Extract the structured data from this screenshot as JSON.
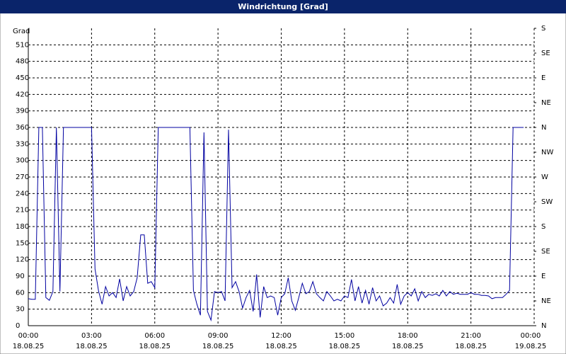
{
  "chart_data": {
    "type": "line",
    "title": "Windrichtung [Grad]",
    "ylabel": "Grad",
    "color": "#0000a0",
    "grid": true,
    "x": [
      0,
      10,
      20,
      30,
      40,
      50,
      60,
      70,
      80,
      90,
      100,
      180,
      190,
      200,
      210,
      220,
      230,
      240,
      250,
      260,
      270,
      280,
      290,
      300,
      310,
      320,
      330,
      340,
      350,
      360,
      370,
      460,
      470,
      480,
      490,
      500,
      510,
      520,
      530,
      540,
      550,
      560,
      570,
      580,
      590,
      600,
      610,
      620,
      630,
      640,
      650,
      660,
      670,
      680,
      690,
      700,
      710,
      720,
      730,
      740,
      750,
      760,
      770,
      780,
      790,
      800,
      810,
      820,
      830,
      840,
      850,
      860,
      870,
      880,
      890,
      900,
      910,
      920,
      930,
      940,
      950,
      960,
      970,
      980,
      990,
      1000,
      1010,
      1020,
      1030,
      1040,
      1050,
      1060,
      1070,
      1080,
      1090,
      1100,
      1110,
      1120,
      1130,
      1140,
      1150,
      1160,
      1170,
      1180,
      1190,
      1200,
      1210,
      1220,
      1230,
      1240,
      1250,
      1260,
      1270,
      1280,
      1290,
      1300,
      1310,
      1320,
      1330,
      1340,
      1350,
      1360,
      1370,
      1380,
      1390,
      1400,
      1410
    ],
    "values": [
      49,
      48,
      48,
      360,
      360,
      51,
      46,
      62,
      360,
      62,
      360,
      360,
      103,
      63,
      39,
      71,
      54,
      60,
      51,
      85,
      45,
      71,
      54,
      62,
      87,
      165,
      165,
      77,
      80,
      69,
      360,
      360,
      64,
      39,
      19,
      351,
      26,
      10,
      62,
      60,
      62,
      45,
      356,
      69,
      80,
      62,
      32,
      51,
      64,
      26,
      93,
      15,
      71,
      51,
      54,
      51,
      19,
      51,
      58,
      87,
      45,
      28,
      51,
      77,
      58,
      62,
      80,
      58,
      51,
      45,
      62,
      54,
      45,
      48,
      45,
      54,
      51,
      84,
      45,
      71,
      41,
      64,
      39,
      69,
      45,
      54,
      36,
      41,
      51,
      41,
      75,
      39,
      54,
      60,
      54,
      67,
      45,
      62,
      51,
      57,
      55,
      58,
      54,
      64,
      54,
      62,
      57,
      59,
      57,
      57,
      57,
      60,
      57,
      57,
      55,
      55,
      54,
      49,
      51,
      51,
      51,
      57,
      64,
      360,
      360,
      360,
      360
    ],
    "xlim": [
      0,
      1440
    ],
    "xticks": [
      {
        "value": 0,
        "label": "00:00"
      },
      {
        "value": 180,
        "label": "03:00"
      },
      {
        "value": 360,
        "label": "06:00"
      },
      {
        "value": 540,
        "label": "09:00"
      },
      {
        "value": 720,
        "label": "12:00"
      },
      {
        "value": 900,
        "label": "15:00"
      },
      {
        "value": 1080,
        "label": "18:00"
      },
      {
        "value": 1260,
        "label": "21:00"
      },
      {
        "value": 1440,
        "label": "00:00"
      }
    ],
    "xtick_dates": [
      "18.08.25",
      "18.08.25",
      "18.08.25",
      "18.08.25",
      "18.08.25",
      "18.08.25",
      "18.08.25",
      "18.08.25",
      "19.08.25"
    ],
    "ylim": [
      0,
      540
    ],
    "yticks": [
      0,
      30,
      60,
      90,
      120,
      150,
      180,
      210,
      240,
      270,
      300,
      330,
      360,
      390,
      420,
      450,
      480,
      510
    ],
    "y2lim": [
      0,
      540
    ],
    "y2ticks": [
      {
        "value": 0,
        "label": "N"
      },
      {
        "value": 45,
        "label": "NE"
      },
      {
        "value": 90,
        "label": "E"
      },
      {
        "value": 135,
        "label": "SE"
      },
      {
        "value": 180,
        "label": "S"
      },
      {
        "value": 225,
        "label": "SW"
      },
      {
        "value": 270,
        "label": "W"
      },
      {
        "value": 315,
        "label": "NW"
      },
      {
        "value": 360,
        "label": "N"
      },
      {
        "value": 405,
        "label": "NE"
      },
      {
        "value": 450,
        "label": "E"
      },
      {
        "value": 495,
        "label": "SE"
      },
      {
        "value": 540,
        "label": "S"
      }
    ]
  }
}
